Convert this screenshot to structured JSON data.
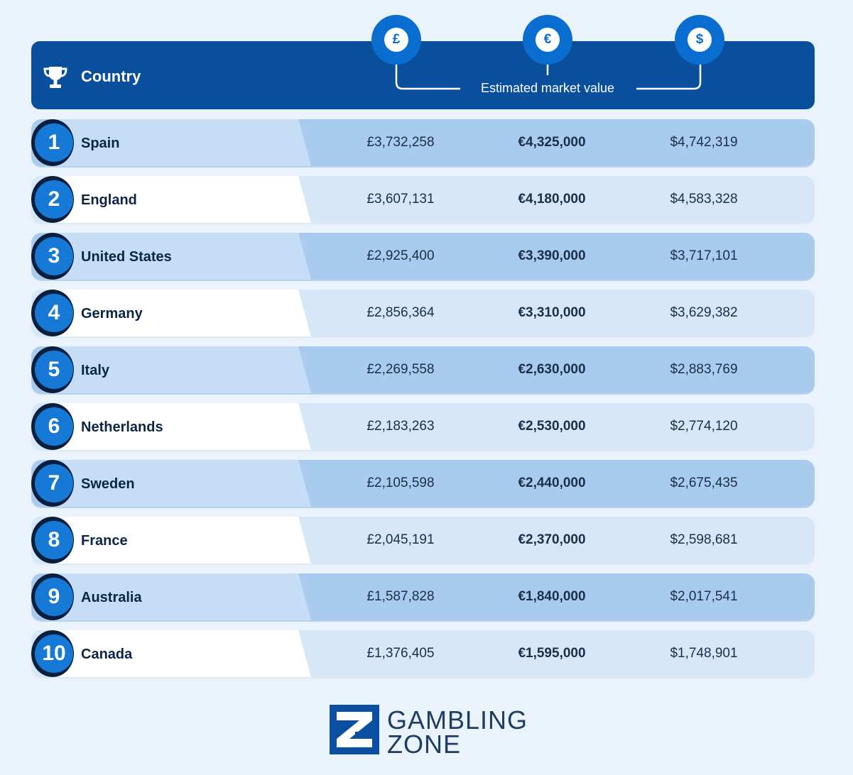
{
  "header": {
    "title": "Country",
    "market_value_label": "Estimated market value",
    "currencies": [
      {
        "symbol": "£",
        "icon": "pound-icon"
      },
      {
        "symbol": "€",
        "icon": "euro-icon"
      },
      {
        "symbol": "$",
        "icon": "dollar-icon"
      }
    ]
  },
  "rows": [
    {
      "rank": "1",
      "country": "Spain",
      "gbp": "£3,732,258",
      "eur": "€4,325,000",
      "usd": "$4,742,319"
    },
    {
      "rank": "2",
      "country": "England",
      "gbp": "£3,607,131",
      "eur": "€4,180,000",
      "usd": "$4,583,328"
    },
    {
      "rank": "3",
      "country": "United States",
      "gbp": "£2,925,400",
      "eur": "€3,390,000",
      "usd": "$3,717,101"
    },
    {
      "rank": "4",
      "country": "Germany",
      "gbp": "£2,856,364",
      "eur": "€3,310,000",
      "usd": "$3,629,382"
    },
    {
      "rank": "5",
      "country": "Italy",
      "gbp": "£2,269,558",
      "eur": "€2,630,000",
      "usd": "$2,883,769"
    },
    {
      "rank": "6",
      "country": "Netherlands",
      "gbp": "£2,183,263",
      "eur": "€2,530,000",
      "usd": "$2,774,120"
    },
    {
      "rank": "7",
      "country": "Sweden",
      "gbp": "£2,105,598",
      "eur": "€2,440,000",
      "usd": "$2,675,435"
    },
    {
      "rank": "8",
      "country": "France",
      "gbp": "£2,045,191",
      "eur": "€2,370,000",
      "usd": "$2,598,681"
    },
    {
      "rank": "9",
      "country": "Australia",
      "gbp": "£1,587,828",
      "eur": "€1,840,000",
      "usd": "$2,017,541"
    },
    {
      "rank": "10",
      "country": "Canada",
      "gbp": "£1,376,405",
      "eur": "€1,595,000",
      "usd": "$1,748,901"
    }
  ],
  "chart_data": {
    "type": "table",
    "columns": [
      "Country",
      "£",
      "€",
      "$"
    ],
    "column_group_label": "Estimated market value",
    "rows": [
      [
        "Spain",
        3732258,
        4325000,
        4742319
      ],
      [
        "England",
        3607131,
        4180000,
        4583328
      ],
      [
        "United States",
        2925400,
        3390000,
        3717101
      ],
      [
        "Germany",
        2856364,
        3310000,
        3629382
      ],
      [
        "Italy",
        2269558,
        2630000,
        2883769
      ],
      [
        "Netherlands",
        2183263,
        2530000,
        2774120
      ],
      [
        "Sweden",
        2105598,
        2440000,
        2675435
      ],
      [
        "France",
        2045191,
        2370000,
        2598681
      ],
      [
        "Australia",
        1587828,
        1840000,
        2017541
      ],
      [
        "Canada",
        1376405,
        1595000,
        1748901
      ]
    ]
  },
  "logo": {
    "line1": "GAMBLING",
    "line2": "ZONE",
    "icon": "gambling-zone-logo-icon"
  },
  "colors": {
    "header_bg": "#0a4f9c",
    "accent": "#1679d6",
    "row_dark": "#a9ccee",
    "row_light": "#d6e7f8",
    "page_bg": "#eaf3fc"
  }
}
